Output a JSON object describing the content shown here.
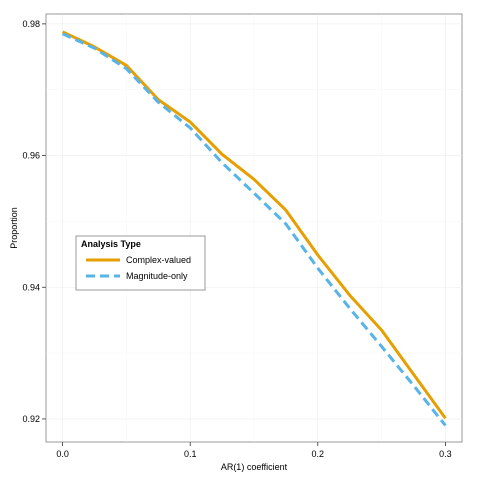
{
  "chart_data": {
    "type": "line",
    "title": "",
    "xlabel": "AR(1) coefficient",
    "ylabel": "Proportion",
    "xlim": [
      -0.013,
      0.313
    ],
    "ylim": [
      0.9165,
      0.9815
    ],
    "x_ticks": [
      0.0,
      0.1,
      0.2,
      0.3
    ],
    "x_tick_labels": [
      "0.0",
      "0.1",
      "0.2",
      "0.3"
    ],
    "y_ticks": [
      0.92,
      0.94,
      0.96,
      0.98
    ],
    "y_tick_labels": [
      "0.92",
      "0.94",
      "0.96",
      "0.98"
    ],
    "grid": true,
    "legend": {
      "title": "Analysis Type",
      "position": "center-left"
    },
    "x": [
      0.0,
      0.025,
      0.05,
      0.075,
      0.1,
      0.125,
      0.15,
      0.175,
      0.2,
      0.225,
      0.25,
      0.275,
      0.3
    ],
    "series": [
      {
        "name": "Complex-valued",
        "color": "#E69F00",
        "dash": "solid",
        "values": [
          0.9788,
          0.9765,
          0.9737,
          0.9685,
          0.9651,
          0.9602,
          0.9564,
          0.9517,
          0.9449,
          0.9388,
          0.9335,
          0.9268,
          0.9201
        ]
      },
      {
        "name": "Magnitude-only",
        "color": "#56B4E9",
        "dash": "dashed",
        "values": [
          0.9785,
          0.9763,
          0.9732,
          0.9681,
          0.9642,
          0.9589,
          0.9543,
          0.9496,
          0.9429,
          0.9368,
          0.931,
          0.9251,
          0.919
        ]
      }
    ]
  }
}
